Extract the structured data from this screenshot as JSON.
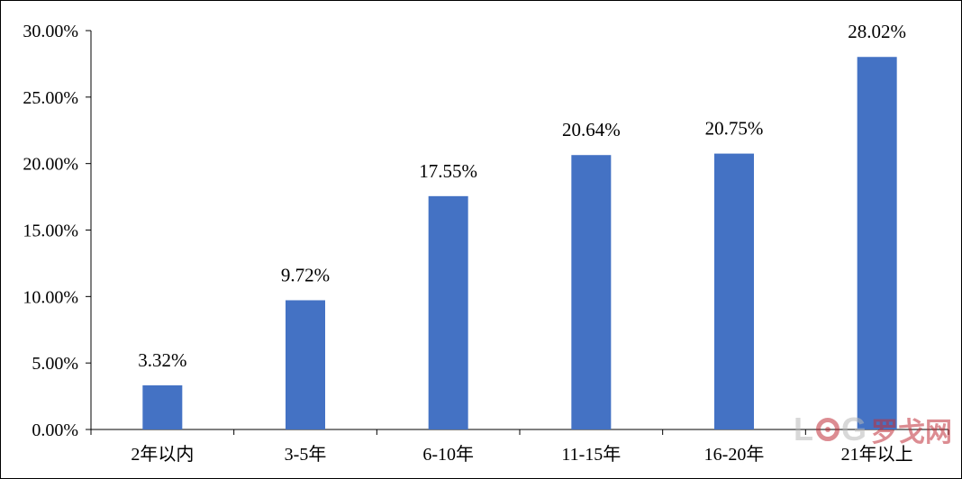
{
  "chart_data": {
    "type": "bar",
    "categories": [
      "2年以内",
      "3-5年",
      "6-10年",
      "11-15年",
      "16-20年",
      "21年以上"
    ],
    "values": [
      3.32,
      9.72,
      17.55,
      20.64,
      20.75,
      28.02
    ],
    "data_labels": [
      "3.32%",
      "9.72%",
      "17.55%",
      "20.64%",
      "20.75%",
      "28.02%"
    ],
    "y_ticks": [
      0,
      5,
      10,
      15,
      20,
      25,
      30
    ],
    "y_tick_labels": [
      "0.00%",
      "5.00%",
      "10.00%",
      "15.00%",
      "20.00%",
      "25.00%",
      "30.00%"
    ],
    "ylim": [
      0,
      30
    ],
    "grid": false,
    "title": "",
    "xlabel": "",
    "ylabel": "",
    "bar_color": "#4472c4"
  },
  "watermark": {
    "text": "LOG罗戈网"
  }
}
